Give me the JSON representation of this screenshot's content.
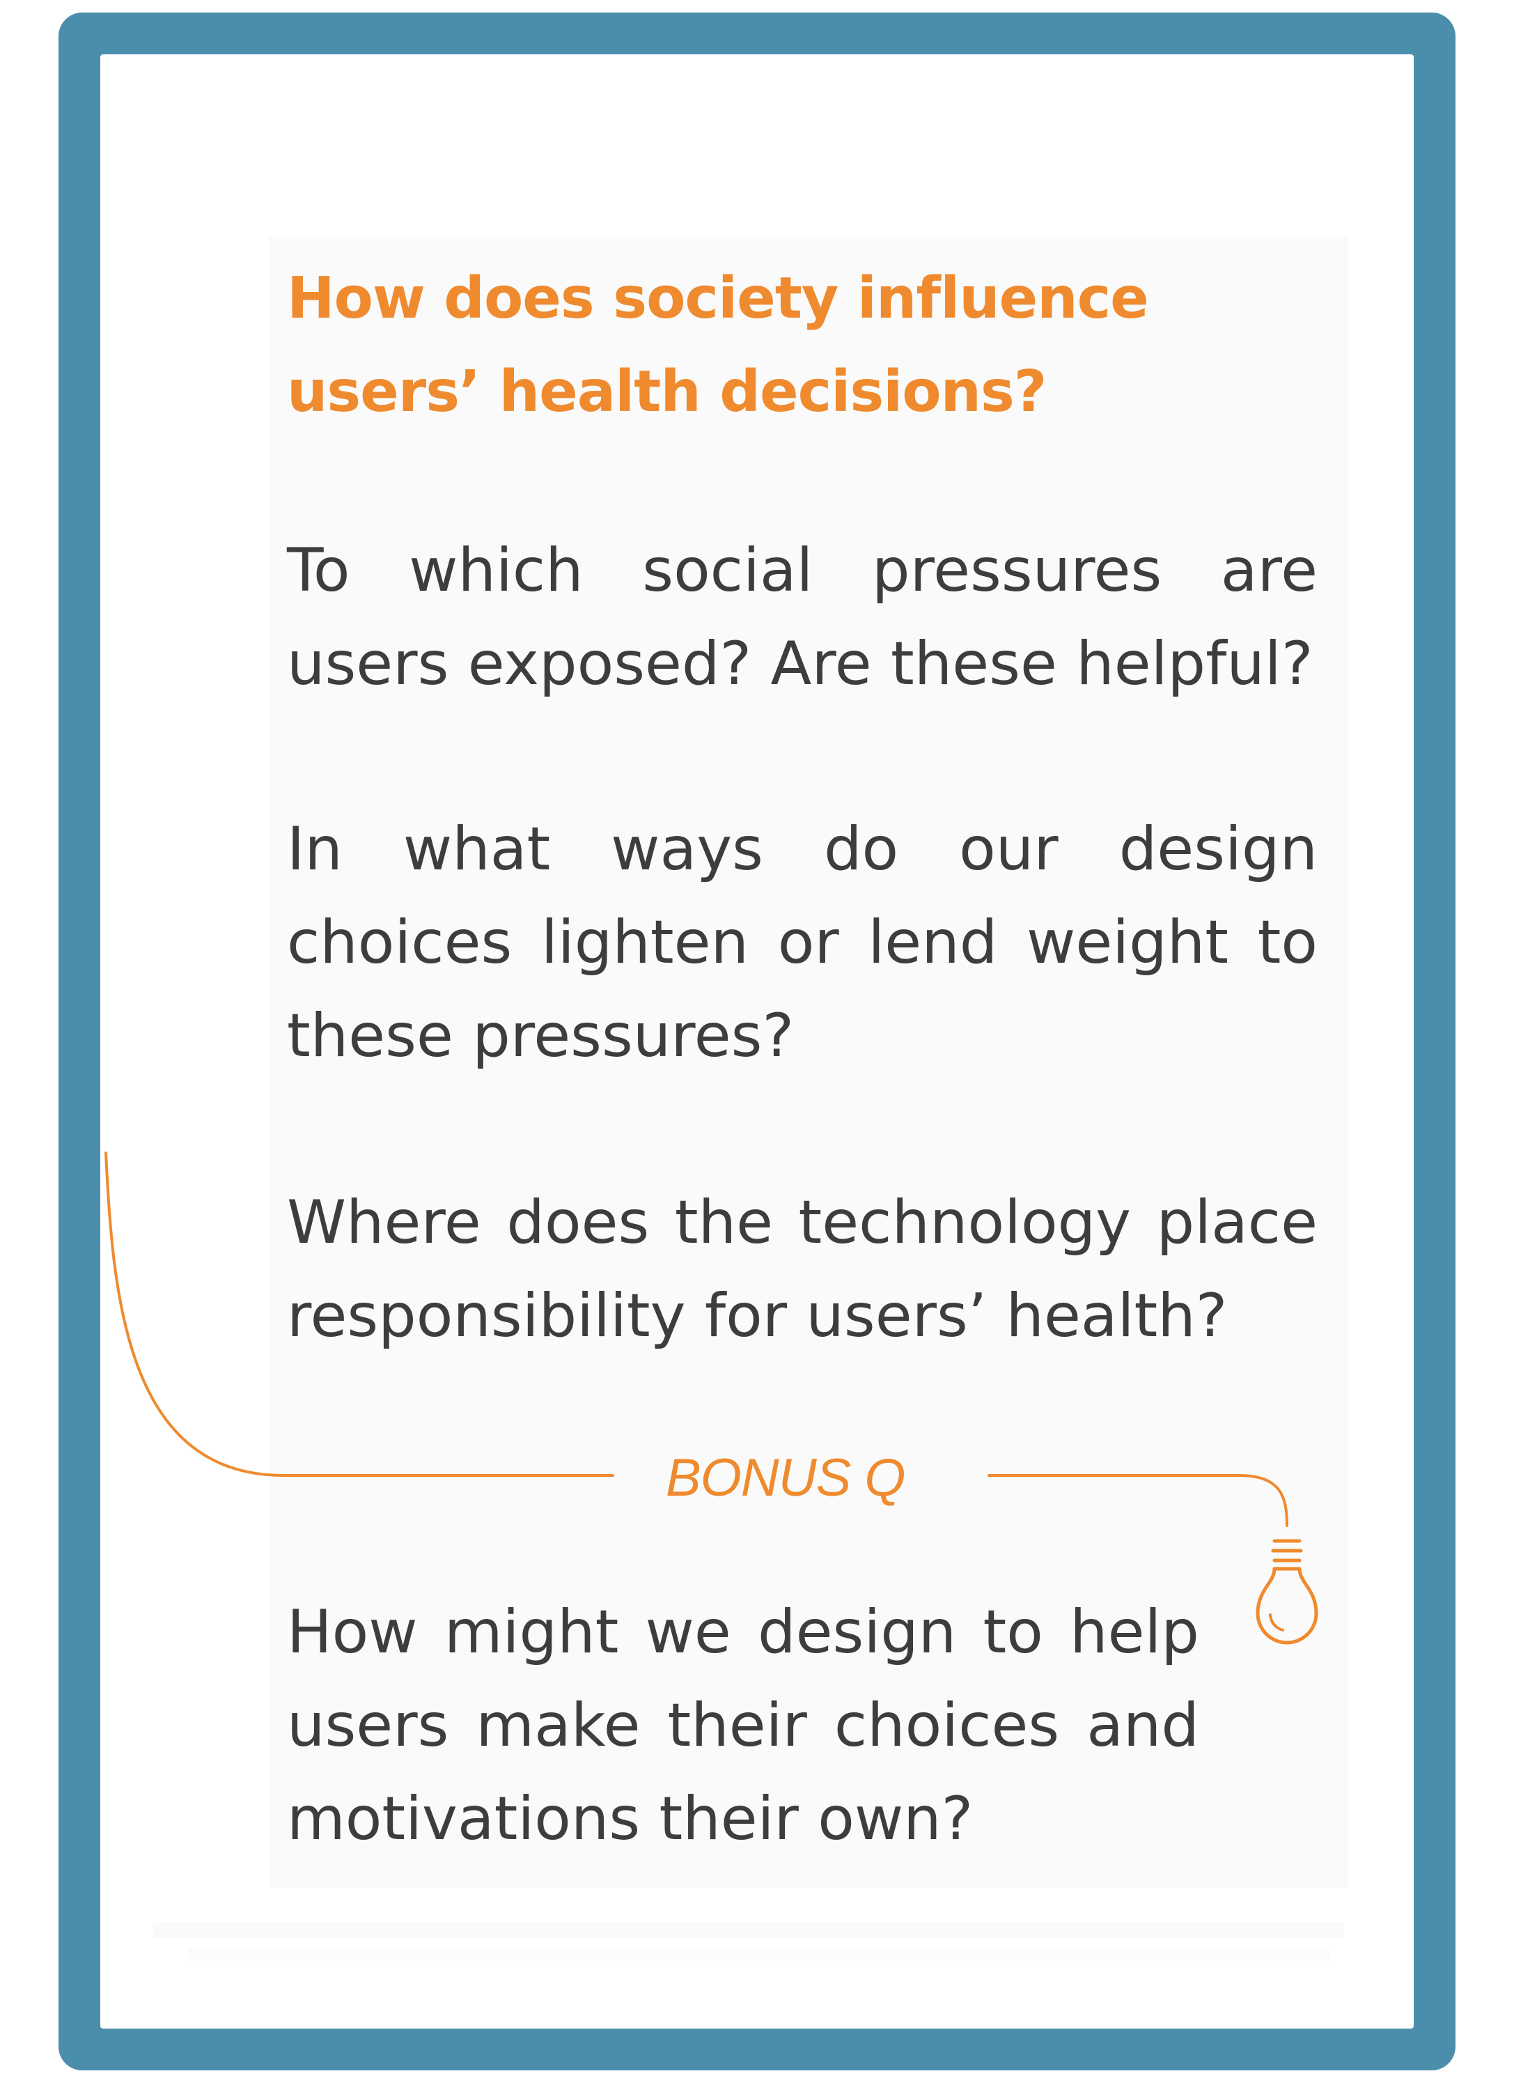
{
  "card": {
    "heading": "How does society influence users’ health decisions?",
    "questions": [
      "To which social pressures are users exposed? Are these helpful?",
      "In what ways do our design choices lighten or lend weight to these pressures?",
      "Where does the technology place responsibility for users’ health?"
    ],
    "bonus": {
      "label": "BONUS Q",
      "question": "How might we design to  help users make their choices and motivations their own?"
    }
  },
  "colors": {
    "frame": "#4b8eab",
    "accent": "#ef8a2e",
    "text": "#3d3d3f"
  },
  "icons": [
    "lightbulb-icon"
  ]
}
